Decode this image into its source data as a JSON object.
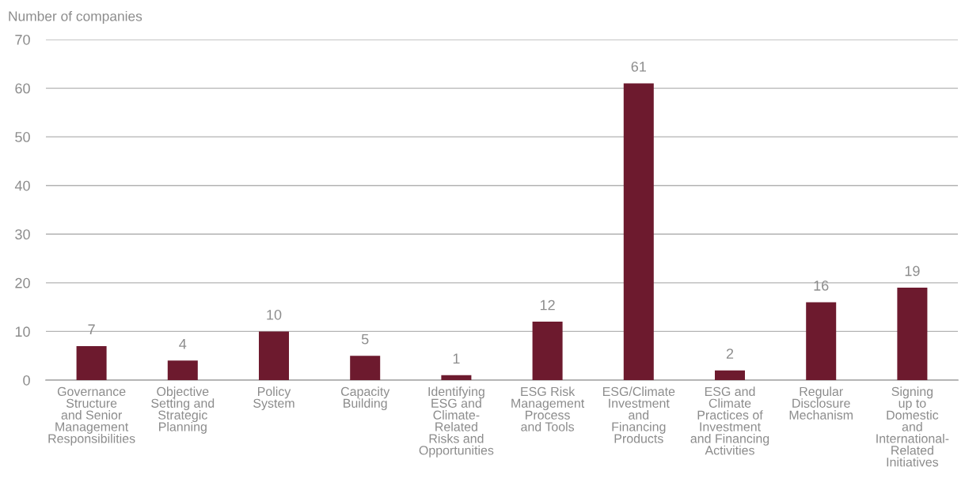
{
  "chart_data": {
    "type": "bar",
    "ylabel": "Number of companies",
    "categories": [
      "Governance\nStructure\nand Senior\nManagement\nResponsibilities",
      "Objective\nSetting and\nStrategic\nPlanning",
      "Policy\nSystem",
      "Capacity\nBuilding",
      "Identifying\nESG and\nClimate-\nRelated\nRisks and\nOpportunities",
      "ESG Risk\nManagement\nProcess\nand Tools",
      "ESG/Climate\nInvestment\nand\nFinancing\nProducts",
      "ESG and\nClimate\nPractices of\nInvestment\nand Financing\nActivities",
      "Regular\nDisclosure\nMechanism",
      "Signing\nup to\nDomestic\nand\nInternational-\nRelated\nInitiatives"
    ],
    "values": [
      7,
      4,
      10,
      5,
      1,
      12,
      61,
      2,
      16,
      19
    ],
    "color": "#6d1a2e",
    "ylim": [
      0,
      70
    ],
    "yticks": [
      0,
      10,
      20,
      30,
      40,
      50,
      60,
      70
    ],
    "grid": "y",
    "data_labels": true
  }
}
